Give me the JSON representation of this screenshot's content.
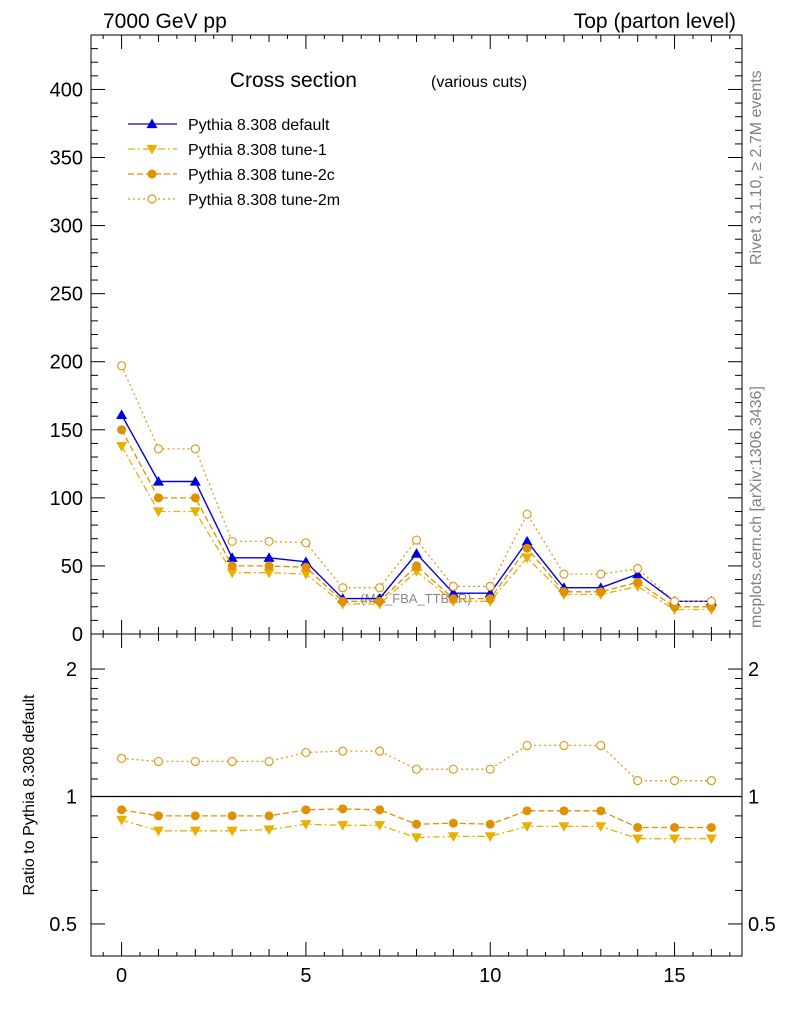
{
  "header": {
    "left": "7000 GeV pp",
    "right": "Top (parton level)"
  },
  "side_labels": {
    "rivet": "Rivet 3.1.10, ≥ 2.7M events",
    "mcplots": "mcplots.cern.ch [arXiv:1306.3436]"
  },
  "chart_data": [
    {
      "type": "line",
      "title": "Cross section",
      "subtitle": "(various cuts)",
      "watermark": "(MC_FBA_TTBAR)",
      "xlim": [
        -0.83,
        16.83
      ],
      "ylim": [
        0,
        440
      ],
      "yticks": [
        0,
        50,
        100,
        150,
        200,
        250,
        300,
        350,
        400
      ],
      "x": [
        0,
        1,
        2,
        3,
        4,
        5,
        6,
        7,
        8,
        9,
        10,
        11,
        12,
        13,
        14,
        15,
        16
      ],
      "series": [
        {
          "name": "Pythia 8.308 default",
          "color": "#0000dd",
          "marker": "triangle-up",
          "dash": "solid",
          "values": [
            161,
            112,
            112,
            56,
            56,
            53,
            26,
            26,
            59,
            30,
            30,
            68,
            34,
            34,
            44,
            24,
            24
          ]
        },
        {
          "name": "Pythia 8.308 tune-1",
          "color": "#e8b000",
          "marker": "triangle-down",
          "dash": "dashdot",
          "values": [
            138,
            90,
            90,
            45,
            45,
            44,
            22,
            22,
            46,
            24,
            24,
            56,
            29,
            29,
            35,
            18,
            18
          ]
        },
        {
          "name": "Pythia 8.308 tune-2c",
          "color": "#e09000",
          "marker": "circle",
          "dash": "dashed",
          "values": [
            150,
            100,
            100,
            50,
            50,
            49,
            24,
            24,
            50,
            26,
            26,
            63,
            31,
            31,
            38,
            20,
            20
          ]
        },
        {
          "name": "Pythia 8.308 tune-2m",
          "color": "#e09a20",
          "marker": "circle-open",
          "dash": "dotted",
          "values": [
            197,
            136,
            136,
            68,
            68,
            67,
            34,
            34,
            69,
            35,
            35,
            88,
            44,
            44,
            48,
            24,
            24
          ]
        }
      ]
    },
    {
      "type": "line",
      "ylabel": "Ratio to Pythia 8.308 default",
      "xlim": [
        -0.83,
        16.83
      ],
      "ylim": [
        0.42,
        2.42
      ],
      "yscale": "log",
      "xticks": [
        0,
        5,
        10,
        15
      ],
      "yticks": [
        0.5,
        1,
        2
      ],
      "reference": 1,
      "x": [
        0,
        1,
        2,
        3,
        4,
        5,
        6,
        7,
        8,
        9,
        10,
        11,
        12,
        13,
        14,
        15,
        16
      ],
      "series": [
        {
          "name": "Pythia 8.308 tune-1",
          "color": "#e8b000",
          "marker": "triangle-down",
          "dash": "dashdot",
          "values": [
            0.88,
            0.83,
            0.83,
            0.83,
            0.835,
            0.86,
            0.855,
            0.855,
            0.8,
            0.805,
            0.805,
            0.85,
            0.85,
            0.85,
            0.795,
            0.795,
            0.795
          ]
        },
        {
          "name": "Pythia 8.308 tune-2c",
          "color": "#e09000",
          "marker": "circle",
          "dash": "dashed",
          "values": [
            0.93,
            0.9,
            0.9,
            0.9,
            0.9,
            0.93,
            0.935,
            0.93,
            0.86,
            0.865,
            0.86,
            0.925,
            0.925,
            0.925,
            0.845,
            0.845,
            0.845
          ]
        },
        {
          "name": "Pythia 8.308 tune-2m",
          "color": "#e09a20",
          "marker": "circle-open",
          "dash": "dotted",
          "values": [
            1.23,
            1.21,
            1.21,
            1.21,
            1.21,
            1.27,
            1.28,
            1.28,
            1.16,
            1.16,
            1.16,
            1.32,
            1.32,
            1.32,
            1.09,
            1.09,
            1.09
          ]
        }
      ]
    }
  ]
}
